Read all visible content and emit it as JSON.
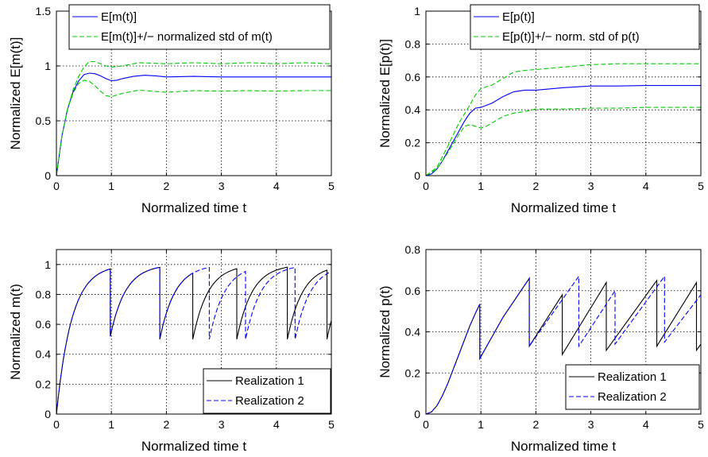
{
  "chart_data": [
    {
      "type": "line",
      "xlabel": "Normalized time t",
      "ylabel": "Normalized E[m(t)]",
      "xlim": [
        0,
        5
      ],
      "ylim": [
        0,
        1.5
      ],
      "xticks": [
        "0",
        "1",
        "2",
        "3",
        "4",
        "5"
      ],
      "yticks": [
        "0",
        "0.5",
        "1",
        "1.5"
      ],
      "grid": true,
      "legend_position": "top",
      "series": [
        {
          "name": "E[m(t)]",
          "color": "#0000ff",
          "dash": "solid",
          "x": [
            0,
            0.1,
            0.2,
            0.3,
            0.4,
            0.5,
            0.6,
            0.7,
            0.8,
            0.9,
            1.0,
            1.1,
            1.2,
            1.4,
            1.6,
            1.8,
            2.0,
            2.5,
            3.0,
            3.5,
            4.0,
            4.5,
            5.0
          ],
          "y": [
            0,
            0.36,
            0.6,
            0.76,
            0.86,
            0.92,
            0.935,
            0.93,
            0.91,
            0.885,
            0.865,
            0.87,
            0.885,
            0.905,
            0.915,
            0.91,
            0.9,
            0.905,
            0.9,
            0.9,
            0.9,
            0.9,
            0.9
          ]
        },
        {
          "name": "E[m(t)]+/− normalized std of m(t)",
          "color": "#00cc00",
          "dash": "dashed",
          "x": [
            0,
            0.1,
            0.2,
            0.3,
            0.4,
            0.5,
            0.6,
            0.7,
            0.8,
            0.9,
            1.0,
            1.2,
            1.5,
            2.0,
            2.5,
            3.0,
            3.5,
            4.0,
            4.5,
            5.0
          ],
          "y": [
            0,
            0.36,
            0.6,
            0.78,
            0.9,
            0.99,
            1.04,
            1.04,
            1.02,
            1.0,
            0.99,
            1.0,
            1.03,
            1.02,
            1.03,
            1.02,
            1.03,
            1.02,
            1.03,
            1.02
          ]
        },
        {
          "name": "",
          "color": "#00cc00",
          "dash": "dashed",
          "x": [
            0,
            0.1,
            0.2,
            0.3,
            0.4,
            0.5,
            0.6,
            0.7,
            0.8,
            0.9,
            1.0,
            1.2,
            1.5,
            2.0,
            2.5,
            3.0,
            3.5,
            4.0,
            4.5,
            5.0
          ],
          "y": [
            0,
            0.36,
            0.6,
            0.75,
            0.84,
            0.87,
            0.86,
            0.82,
            0.77,
            0.73,
            0.72,
            0.75,
            0.78,
            0.76,
            0.775,
            0.77,
            0.775,
            0.77,
            0.775,
            0.775
          ]
        }
      ]
    },
    {
      "type": "line",
      "xlabel": "Normalized time t",
      "ylabel": "Normalized E[p(t)]",
      "xlim": [
        0,
        5
      ],
      "ylim": [
        0,
        1
      ],
      "xticks": [
        "0",
        "1",
        "2",
        "3",
        "4",
        "5"
      ],
      "yticks": [
        "0",
        "0.2",
        "0.4",
        "0.6",
        "0.8",
        "1"
      ],
      "grid": true,
      "legend_position": "top",
      "series": [
        {
          "name": "E[p(t)]",
          "color": "#0000ff",
          "dash": "solid",
          "x": [
            0,
            0.1,
            0.2,
            0.3,
            0.4,
            0.5,
            0.6,
            0.7,
            0.8,
            0.9,
            1.0,
            1.2,
            1.4,
            1.6,
            1.8,
            2.0,
            2.5,
            3.0,
            3.5,
            4.0,
            4.5,
            5.0
          ],
          "y": [
            0,
            0.01,
            0.04,
            0.09,
            0.15,
            0.21,
            0.27,
            0.33,
            0.38,
            0.41,
            0.415,
            0.44,
            0.48,
            0.51,
            0.52,
            0.52,
            0.535,
            0.545,
            0.545,
            0.548,
            0.548,
            0.548
          ]
        },
        {
          "name": "E[p(t)]+/− norm. std of p(t)",
          "color": "#00cc00",
          "dash": "dashed",
          "x": [
            0,
            0.2,
            0.4,
            0.6,
            0.8,
            0.9,
            1.0,
            1.2,
            1.4,
            1.6,
            1.8,
            2.0,
            2.5,
            3.0,
            3.5,
            4.0,
            4.5,
            5.0
          ],
          "y": [
            0,
            0.05,
            0.18,
            0.32,
            0.43,
            0.49,
            0.53,
            0.55,
            0.59,
            0.63,
            0.64,
            0.645,
            0.66,
            0.675,
            0.68,
            0.68,
            0.68,
            0.68
          ]
        },
        {
          "name": "",
          "color": "#00cc00",
          "dash": "dashed",
          "x": [
            0,
            0.2,
            0.4,
            0.6,
            0.7,
            0.8,
            0.9,
            1.0,
            1.1,
            1.2,
            1.4,
            1.6,
            1.8,
            2.0,
            2.5,
            3.0,
            3.5,
            4.0,
            4.5,
            5.0
          ],
          "y": [
            0,
            0.04,
            0.14,
            0.25,
            0.3,
            0.31,
            0.3,
            0.29,
            0.3,
            0.32,
            0.36,
            0.38,
            0.39,
            0.405,
            0.405,
            0.41,
            0.41,
            0.415,
            0.415,
            0.415
          ]
        }
      ]
    },
    {
      "type": "line",
      "xlabel": "Normalized time t",
      "ylabel": "Normalized m(t)",
      "xlim": [
        0,
        5
      ],
      "ylim": [
        0,
        1.1
      ],
      "xticks": [
        "0",
        "1",
        "2",
        "3",
        "4",
        "5"
      ],
      "yticks": [
        "0",
        "0.2",
        "0.4",
        "0.6",
        "0.8",
        "1"
      ],
      "grid": true,
      "legend_position": "bottom-right",
      "series": [
        {
          "name": "Realization 1",
          "color": "#000000",
          "dash": "solid",
          "model": "relaxation",
          "start": 0,
          "segments": [
            {
              "t0": 0,
              "t1": 0.98,
              "start": 0
            },
            {
              "t0": 0.98,
              "t1": 1.88,
              "start": 0.52
            },
            {
              "t0": 1.88,
              "t1": 2.48,
              "start": 0.5
            },
            {
              "t0": 2.48,
              "t1": 3.28,
              "start": 0.5
            },
            {
              "t0": 3.28,
              "t1": 4.2,
              "start": 0.5
            },
            {
              "t0": 4.2,
              "t1": 4.92,
              "start": 0.5
            },
            {
              "t0": 4.92,
              "t1": 5.0,
              "start": 0.5
            }
          ]
        },
        {
          "name": "Realization 2",
          "color": "#0000ff",
          "dash": "dashed",
          "model": "relaxation",
          "start": 0,
          "segments": [
            {
              "t0": 0,
              "t1": 0.98,
              "start": 0
            },
            {
              "t0": 0.98,
              "t1": 1.88,
              "start": 0.52
            },
            {
              "t0": 1.88,
              "t1": 2.78,
              "start": 0.5
            },
            {
              "t0": 2.78,
              "t1": 3.44,
              "start": 0.5
            },
            {
              "t0": 3.44,
              "t1": 4.34,
              "start": 0.5
            },
            {
              "t0": 4.34,
              "t1": 5.0,
              "start": 0.5
            }
          ]
        }
      ]
    },
    {
      "type": "line",
      "xlabel": "Normalized time t",
      "ylabel": "Normalized p(t)",
      "xlim": [
        0,
        5
      ],
      "ylim": [
        0,
        0.8
      ],
      "xticks": [
        "0",
        "1",
        "2",
        "3",
        "4",
        "5"
      ],
      "yticks": [
        "0",
        "0.2",
        "0.4",
        "0.6",
        "0.8"
      ],
      "grid": true,
      "legend_position": "bottom-right",
      "series": [
        {
          "name": "Realization 1",
          "color": "#000000",
          "dash": "solid",
          "x": [
            0,
            0.1,
            0.2,
            0.3,
            0.4,
            0.5,
            0.6,
            0.7,
            0.8,
            0.9,
            0.98,
            0.98,
            1.4,
            1.88,
            1.88,
            2.48,
            2.48,
            3.28,
            3.28,
            4.2,
            4.2,
            4.92,
            4.92,
            5.0
          ],
          "y": [
            0,
            0.01,
            0.04,
            0.09,
            0.15,
            0.22,
            0.29,
            0.36,
            0.43,
            0.49,
            0.535,
            0.27,
            0.47,
            0.66,
            0.33,
            0.58,
            0.29,
            0.64,
            0.31,
            0.65,
            0.33,
            0.64,
            0.31,
            0.34
          ]
        },
        {
          "name": "Realization 2",
          "color": "#0000ff",
          "dash": "dashed",
          "x": [
            0,
            0.1,
            0.2,
            0.3,
            0.4,
            0.5,
            0.6,
            0.7,
            0.8,
            0.9,
            0.98,
            0.98,
            1.4,
            1.88,
            1.88,
            2.78,
            2.78,
            3.44,
            3.44,
            4.34,
            4.34,
            5.0
          ],
          "y": [
            0,
            0.01,
            0.04,
            0.09,
            0.15,
            0.22,
            0.29,
            0.36,
            0.43,
            0.49,
            0.535,
            0.27,
            0.47,
            0.66,
            0.33,
            0.67,
            0.33,
            0.6,
            0.34,
            0.67,
            0.35,
            0.58
          ]
        }
      ]
    }
  ]
}
